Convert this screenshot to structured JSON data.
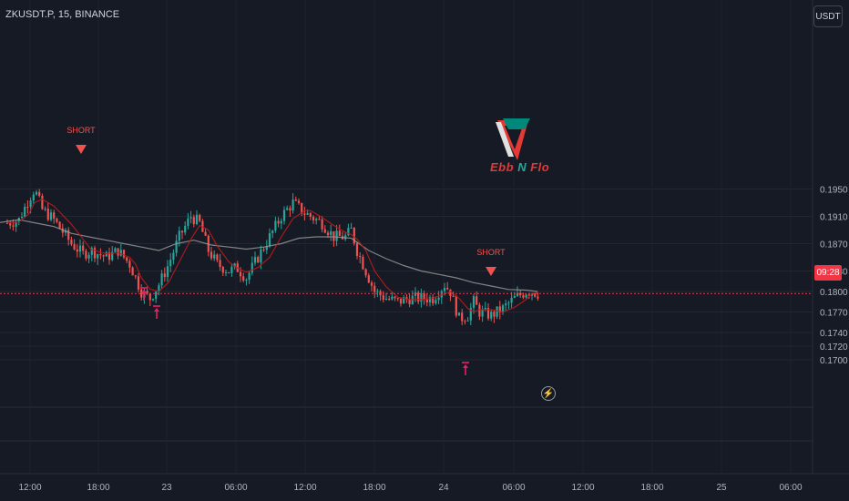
{
  "header": {
    "symbol": "ZKUSDT.P, 15, BINANCE"
  },
  "currency_label": "USDT",
  "logo": {
    "brand": "Ebb N Flo",
    "colors": [
      "#e53935",
      "#00897b"
    ]
  },
  "signals": {
    "short_label": "SHORT",
    "short_marks": [
      {
        "x": "17:10",
        "label": "SHORT"
      },
      {
        "x": "02:05",
        "label": "SHORT"
      }
    ],
    "long_marks": [
      {
        "x": "21:25",
        "marker": "up-arrow-icon"
      },
      {
        "x": "22:15",
        "marker": "up-arrow-icon"
      },
      {
        "x": "00:55",
        "marker": "up-arrow-icon"
      }
    ]
  },
  "colors": {
    "up": "#26a69a",
    "down": "#ef5350",
    "ma_slow": "#9e9e9e",
    "ma_fast": "#b71c1c",
    "signal_short": "#ef5350",
    "signal_long": "#e91e63",
    "last_price_line": "#f23645"
  },
  "chart_data": {
    "type": "candlestick",
    "title": "ZKUSDT.P, 15, BINANCE",
    "timeframe": "15",
    "xlabel": "",
    "ylabel": "",
    "ylim": [
      0.1684,
      0.1995
    ],
    "y_ticks": [
      "0.1950",
      "0.1910",
      "0.1870",
      "0.1830",
      "0.1800",
      "0.1770",
      "0.1740",
      "0.1720",
      "0.1700"
    ],
    "x_ticks": [
      "12:00",
      "18:00",
      "23",
      "06:00",
      "12:00",
      "18:00",
      "24",
      "06:00",
      "12:00",
      "18:00",
      "25",
      "06:00"
    ],
    "last_price_time": "09:28",
    "price_path": [
      [
        "10:00",
        0.19
      ],
      [
        "11:00",
        0.1905
      ],
      [
        "11:50",
        0.1935
      ],
      [
        "12:20",
        0.195
      ],
      [
        "13:00",
        0.192
      ],
      [
        "14:00",
        0.1905
      ],
      [
        "15:30",
        0.187
      ],
      [
        "16:30",
        0.1855
      ],
      [
        "17:10",
        0.186
      ],
      [
        "18:30",
        0.185
      ],
      [
        "19:30",
        0.186
      ],
      [
        "20:30",
        0.184
      ],
      [
        "21:00",
        0.182
      ],
      [
        "21:30",
        0.18
      ],
      [
        "22:15",
        0.179
      ],
      [
        "23:00",
        0.181
      ],
      [
        "23:50",
        0.184
      ],
      [
        "00:45",
        0.188
      ],
      [
        "01:45",
        0.191
      ],
      [
        "02:30",
        0.19
      ],
      [
        "03:15",
        0.186
      ],
      [
        "04:00",
        0.184
      ],
      [
        "05:00",
        0.183
      ],
      [
        "05:40",
        0.1835
      ],
      [
        "06:30",
        0.182
      ],
      [
        "07:30",
        0.185
      ],
      [
        "08:30",
        0.188
      ],
      [
        "09:30",
        0.191
      ],
      [
        "10:30",
        0.193
      ],
      [
        "11:30",
        0.1915
      ],
      [
        "12:00",
        0.191
      ],
      [
        "13:00",
        0.19
      ],
      [
        "14:00",
        0.188
      ],
      [
        "15:00",
        0.188
      ],
      [
        "15:30",
        0.189
      ],
      [
        "16:00",
        0.186
      ],
      [
        "16:45",
        0.183
      ],
      [
        "17:30",
        0.18
      ],
      [
        "18:30",
        0.179
      ],
      [
        "19:30",
        0.1785
      ],
      [
        "20:30",
        0.179
      ],
      [
        "21:30",
        0.179
      ],
      [
        "22:30",
        0.179
      ],
      [
        "23:30",
        0.181
      ],
      [
        "00:00",
        0.18
      ],
      [
        "00:45",
        0.176
      ],
      [
        "01:30",
        0.1765
      ],
      [
        "02:00",
        0.1785
      ],
      [
        "02:30",
        0.177
      ],
      [
        "03:30",
        0.1765
      ],
      [
        "04:30",
        0.1775
      ],
      [
        "05:30",
        0.179
      ],
      [
        "06:30",
        0.18
      ],
      [
        "07:00",
        0.18
      ],
      [
        "07:30",
        0.1797
      ]
    ],
    "ma_slow": [
      [
        "09:00",
        0.19
      ],
      [
        "11:00",
        0.1905
      ],
      [
        "12:30",
        0.19
      ],
      [
        "14:00",
        0.1895
      ],
      [
        "15:30",
        0.1885
      ],
      [
        "17:00",
        0.188
      ],
      [
        "18:30",
        0.1875
      ],
      [
        "20:00",
        0.187
      ],
      [
        "21:30",
        0.1865
      ],
      [
        "23:00",
        0.186
      ],
      [
        "00:30",
        0.187
      ],
      [
        "02:00",
        0.1875
      ],
      [
        "03:30",
        0.1868
      ],
      [
        "05:00",
        0.1865
      ],
      [
        "06:30",
        0.1862
      ],
      [
        "08:00",
        0.1865
      ],
      [
        "09:30",
        0.187
      ],
      [
        "11:00",
        0.1878
      ],
      [
        "12:30",
        0.188
      ],
      [
        "14:00",
        0.188
      ],
      [
        "15:30",
        0.1878
      ],
      [
        "17:00",
        0.186
      ],
      [
        "18:30",
        0.1848
      ],
      [
        "20:00",
        0.1838
      ],
      [
        "21:30",
        0.183
      ],
      [
        "23:00",
        0.1825
      ],
      [
        "00:30",
        0.182
      ],
      [
        "02:00",
        0.1813
      ],
      [
        "03:30",
        0.1808
      ],
      [
        "05:00",
        0.1803
      ],
      [
        "06:30",
        0.1802
      ],
      [
        "07:30",
        0.18
      ]
    ]
  }
}
